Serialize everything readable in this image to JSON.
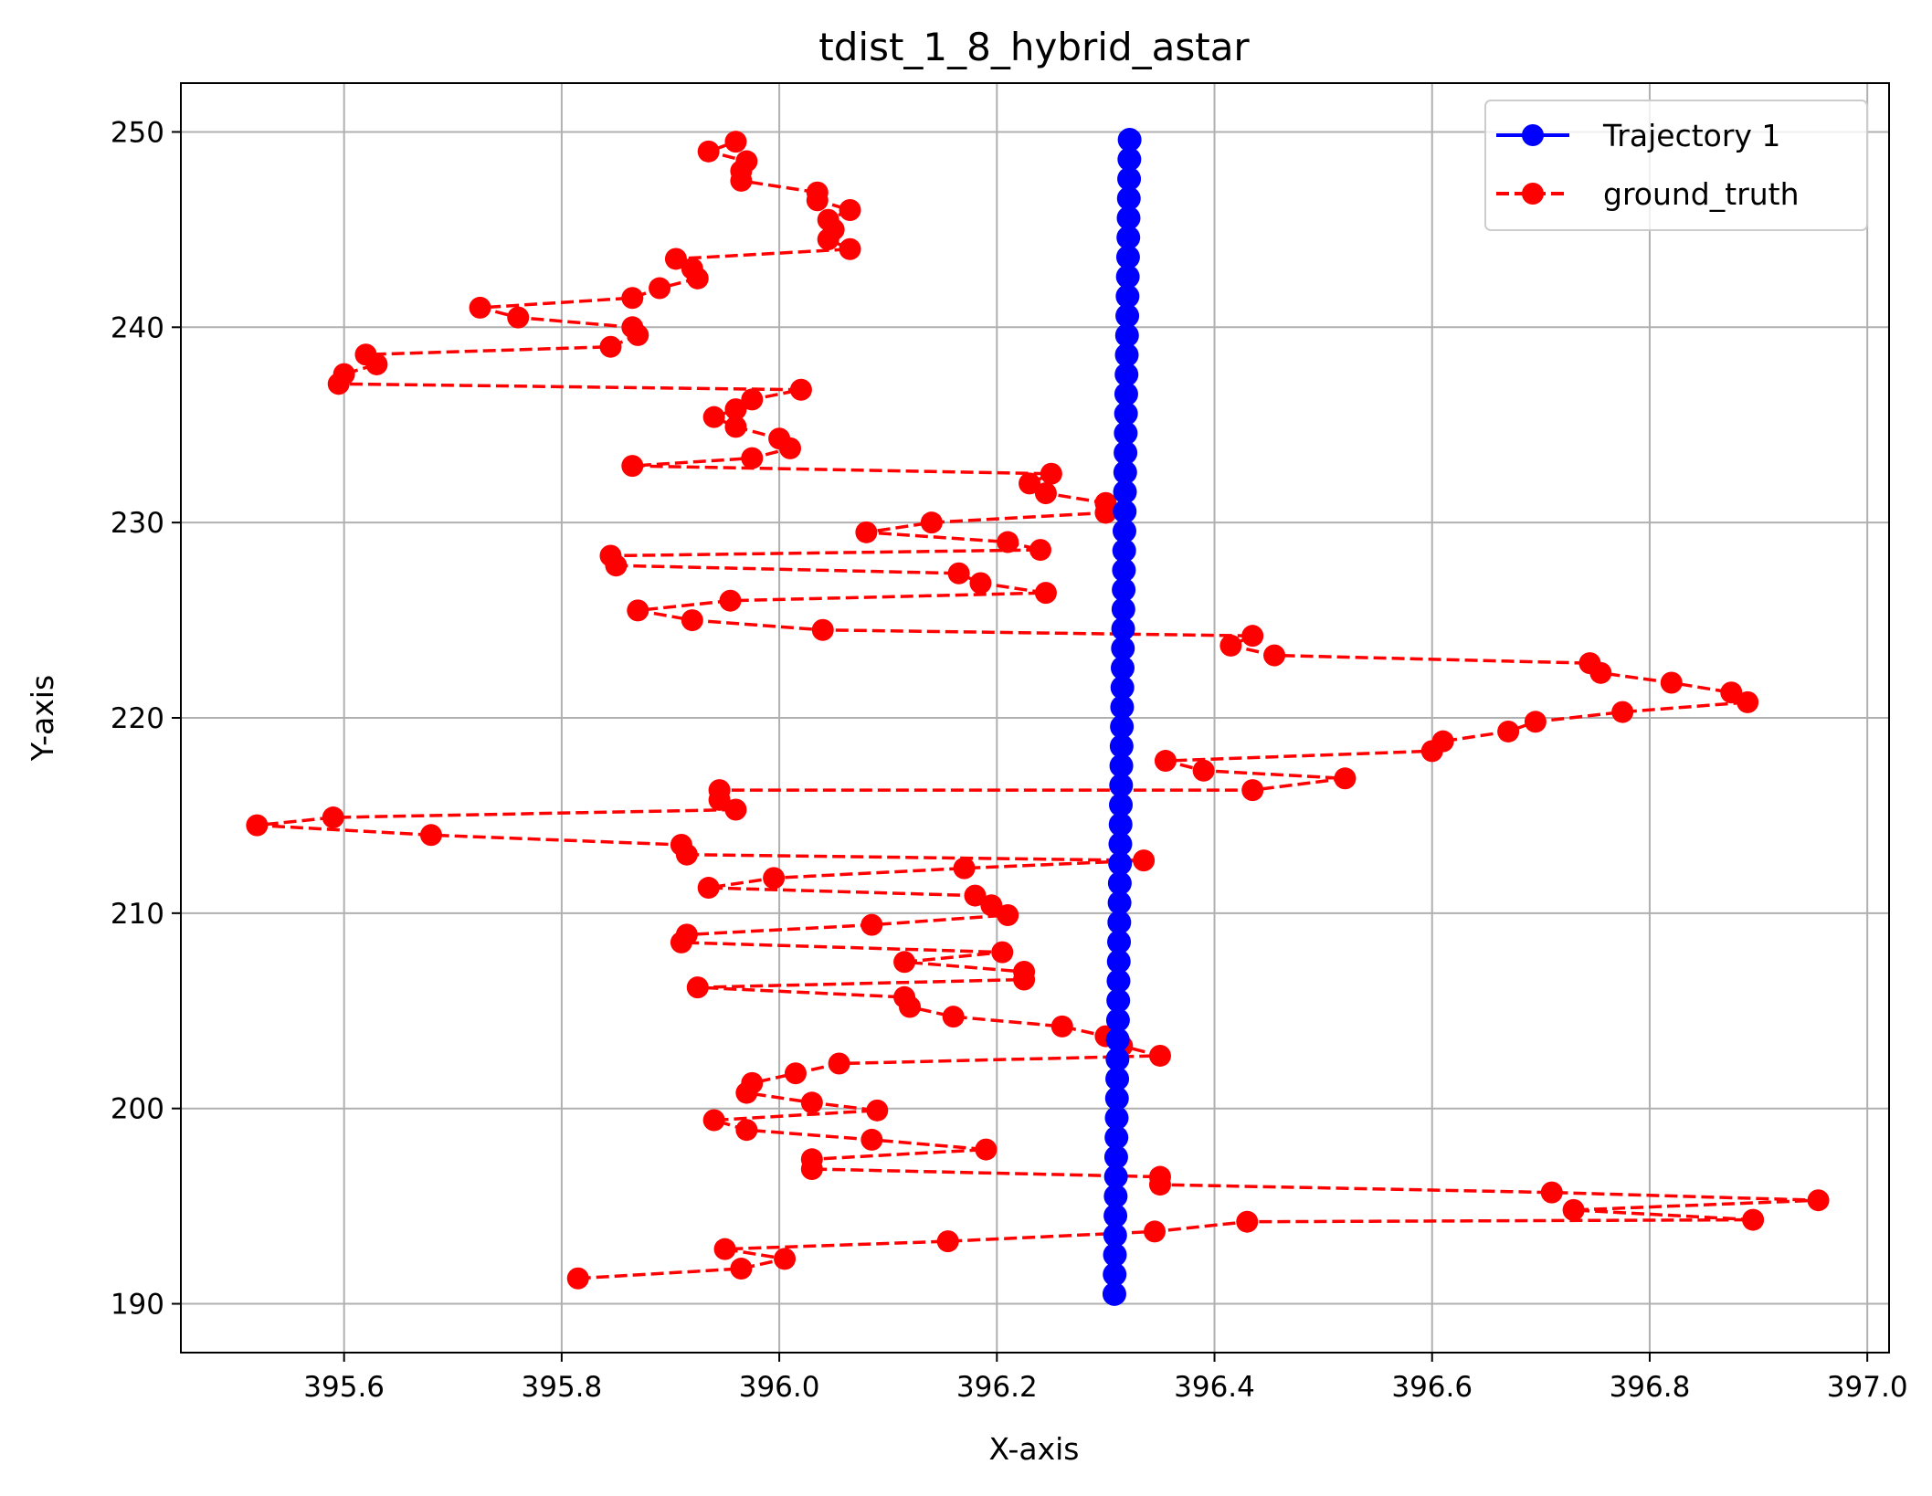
{
  "chart_data": {
    "type": "line",
    "title": "tdist_1_8_hybrid_astar",
    "xlabel": "X-axis",
    "ylabel": "Y-axis",
    "xlim": [
      395.45,
      397.02
    ],
    "ylim": [
      187.5,
      252.5
    ],
    "xticks": [
      395.6,
      395.8,
      396.0,
      396.2,
      396.4,
      396.6,
      396.8,
      397.0
    ],
    "xtick_labels": [
      "395.6",
      "395.8",
      "396.0",
      "396.2",
      "396.4",
      "396.6",
      "396.8",
      "397.0"
    ],
    "yticks": [
      190,
      200,
      210,
      220,
      230,
      240,
      250
    ],
    "ytick_labels": [
      "190",
      "200",
      "210",
      "220",
      "230",
      "240",
      "250"
    ],
    "grid": true,
    "legend_position": "top-right",
    "series": [
      {
        "name": "Trajectory 1",
        "color": "#0000ff",
        "line_style": "solid",
        "marker": "circle",
        "x_start": 396.308,
        "x_end": 396.322,
        "y_start": 190.5,
        "y_end": 249.6,
        "n_points": 60
      },
      {
        "name": "ground_truth",
        "color": "#ff0000",
        "line_style": "dashed",
        "marker": "circle",
        "points": [
          [
            395.815,
            191.3
          ],
          [
            395.965,
            191.8
          ],
          [
            396.005,
            192.3
          ],
          [
            395.95,
            192.8
          ],
          [
            396.155,
            193.2
          ],
          [
            396.345,
            193.7
          ],
          [
            396.43,
            194.2
          ],
          [
            396.895,
            194.3
          ],
          [
            396.73,
            194.8
          ],
          [
            396.955,
            195.3
          ],
          [
            396.71,
            195.7
          ],
          [
            396.35,
            196.1
          ],
          [
            396.35,
            196.5
          ],
          [
            396.03,
            196.9
          ],
          [
            396.03,
            197.4
          ],
          [
            396.19,
            197.9
          ],
          [
            396.085,
            198.4
          ],
          [
            395.97,
            198.9
          ],
          [
            395.94,
            199.4
          ],
          [
            396.09,
            199.9
          ],
          [
            396.03,
            200.3
          ],
          [
            395.97,
            200.8
          ],
          [
            395.975,
            201.3
          ],
          [
            396.015,
            201.8
          ],
          [
            396.055,
            202.3
          ],
          [
            396.35,
            202.7
          ],
          [
            396.315,
            203.2
          ],
          [
            396.3,
            203.7
          ],
          [
            396.26,
            204.2
          ],
          [
            396.16,
            204.7
          ],
          [
            396.12,
            205.2
          ],
          [
            396.115,
            205.7
          ],
          [
            395.925,
            206.2
          ],
          [
            396.225,
            206.6
          ],
          [
            396.225,
            207.0
          ],
          [
            396.115,
            207.5
          ],
          [
            396.205,
            208.0
          ],
          [
            395.91,
            208.5
          ],
          [
            395.915,
            208.9
          ],
          [
            396.085,
            209.4
          ],
          [
            396.21,
            209.9
          ],
          [
            396.195,
            210.4
          ],
          [
            396.18,
            210.9
          ],
          [
            395.935,
            211.3
          ],
          [
            395.995,
            211.8
          ],
          [
            396.17,
            212.3
          ],
          [
            396.335,
            212.7
          ],
          [
            395.915,
            213.0
          ],
          [
            395.91,
            213.5
          ],
          [
            395.68,
            214.0
          ],
          [
            395.52,
            214.5
          ],
          [
            395.59,
            214.9
          ],
          [
            395.96,
            215.3
          ],
          [
            395.945,
            215.8
          ],
          [
            395.945,
            216.3
          ],
          [
            396.435,
            216.3
          ],
          [
            396.52,
            216.9
          ],
          [
            396.39,
            217.3
          ],
          [
            396.355,
            217.8
          ],
          [
            396.6,
            218.3
          ],
          [
            396.61,
            218.8
          ],
          [
            396.67,
            219.3
          ],
          [
            396.695,
            219.8
          ],
          [
            396.775,
            220.3
          ],
          [
            396.89,
            220.8
          ],
          [
            396.875,
            221.3
          ],
          [
            396.82,
            221.8
          ],
          [
            396.755,
            222.3
          ],
          [
            396.745,
            222.8
          ],
          [
            396.455,
            223.2
          ],
          [
            396.415,
            223.7
          ],
          [
            396.435,
            224.2
          ],
          [
            396.04,
            224.5
          ],
          [
            395.92,
            225.0
          ],
          [
            395.87,
            225.5
          ],
          [
            395.955,
            226.0
          ],
          [
            396.245,
            226.4
          ],
          [
            396.185,
            226.9
          ],
          [
            396.165,
            227.4
          ],
          [
            395.85,
            227.8
          ],
          [
            395.845,
            228.3
          ],
          [
            396.24,
            228.6
          ],
          [
            396.21,
            229.0
          ],
          [
            396.08,
            229.5
          ],
          [
            396.14,
            230.0
          ],
          [
            396.3,
            230.5
          ],
          [
            396.3,
            231.0
          ],
          [
            396.245,
            231.5
          ],
          [
            396.23,
            232.0
          ],
          [
            396.25,
            232.5
          ],
          [
            395.865,
            232.9
          ],
          [
            395.975,
            233.3
          ],
          [
            396.01,
            233.8
          ],
          [
            396.0,
            234.3
          ],
          [
            395.96,
            234.9
          ],
          [
            395.94,
            235.4
          ],
          [
            395.96,
            235.8
          ],
          [
            395.975,
            236.3
          ],
          [
            396.02,
            236.8
          ],
          [
            395.595,
            237.1
          ],
          [
            395.6,
            237.6
          ],
          [
            395.63,
            238.1
          ],
          [
            395.62,
            238.6
          ],
          [
            395.845,
            239.0
          ],
          [
            395.87,
            239.6
          ],
          [
            395.865,
            240.0
          ],
          [
            395.76,
            240.5
          ],
          [
            395.725,
            241.0
          ],
          [
            395.865,
            241.5
          ],
          [
            395.89,
            242.0
          ],
          [
            395.925,
            242.5
          ],
          [
            395.92,
            243.0
          ],
          [
            395.905,
            243.5
          ],
          [
            396.065,
            244.0
          ],
          [
            396.045,
            244.5
          ],
          [
            396.05,
            245.0
          ],
          [
            396.045,
            245.5
          ],
          [
            396.065,
            246.0
          ],
          [
            396.035,
            246.5
          ],
          [
            396.035,
            246.9
          ],
          [
            395.965,
            247.5
          ],
          [
            395.965,
            248.0
          ],
          [
            395.97,
            248.5
          ],
          [
            395.935,
            249.0
          ],
          [
            395.96,
            249.5
          ]
        ]
      }
    ]
  }
}
